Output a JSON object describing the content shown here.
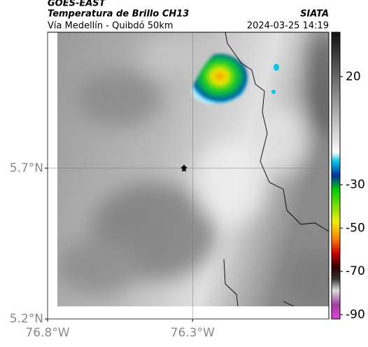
{
  "header": {
    "title": "GOES-EAST",
    "subtitle": "Temperatura de Brillo CH13",
    "source": "SIATA",
    "route": "Vía Medellín - Quibdó 50km",
    "datetime": "2024-03-25 14:19"
  },
  "map": {
    "xlim": [
      -76.8,
      -75.83
    ],
    "ylim": [
      5.2,
      6.151
    ],
    "xticks": [
      {
        "value": -76.8,
        "label": "76.8°W"
      },
      {
        "value": -76.3,
        "label": "76.3°W"
      }
    ],
    "yticks": [
      {
        "value": 5.7,
        "label": "5.7°N"
      },
      {
        "value": 5.2,
        "label": "5.2°N"
      }
    ],
    "grid": true
  },
  "colorbar": {
    "lim": [
      40.5,
      -92
    ],
    "ticks": [
      20,
      -30,
      -50,
      -70,
      -90
    ]
  }
}
